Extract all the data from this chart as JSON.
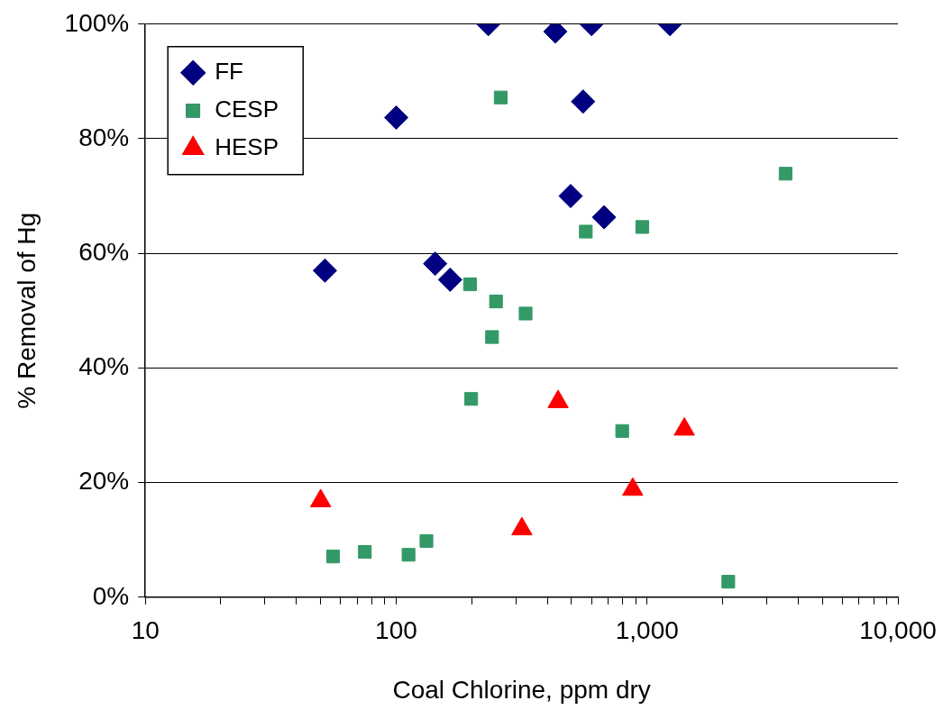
{
  "chart_data": {
    "type": "scatter",
    "xlabel": "Coal Chlorine, ppm dry",
    "ylabel": "% Removal of Hg",
    "log": "x",
    "grid": "y",
    "legend": "top left",
    "xlim": [
      10,
      10000
    ],
    "xticks": [
      {
        "value": 10,
        "label": "10"
      },
      {
        "value": 20,
        "label": null
      },
      {
        "value": 30,
        "label": null
      },
      {
        "value": 40,
        "label": null
      },
      {
        "value": 50,
        "label": null
      },
      {
        "value": 60,
        "label": null
      },
      {
        "value": 70,
        "label": null
      },
      {
        "value": 80,
        "label": null
      },
      {
        "value": 90,
        "label": null
      },
      {
        "value": 100,
        "label": "100"
      },
      {
        "value": 200,
        "label": null
      },
      {
        "value": 300,
        "label": null
      },
      {
        "value": 400,
        "label": null
      },
      {
        "value": 500,
        "label": null
      },
      {
        "value": 600,
        "label": null
      },
      {
        "value": 700,
        "label": null
      },
      {
        "value": 800,
        "label": null
      },
      {
        "value": 900,
        "label": null
      },
      {
        "value": 1000,
        "label": "1,000"
      },
      {
        "value": 2000,
        "label": null
      },
      {
        "value": 3000,
        "label": null
      },
      {
        "value": 4000,
        "label": null
      },
      {
        "value": 5000,
        "label": null
      },
      {
        "value": 6000,
        "label": null
      },
      {
        "value": 7000,
        "label": null
      },
      {
        "value": 8000,
        "label": null
      },
      {
        "value": 9000,
        "label": null
      },
      {
        "value": 10000,
        "label": "10,000"
      }
    ],
    "ylim": [
      0,
      100
    ],
    "yticks": [
      {
        "value": 0,
        "label": "0%"
      },
      {
        "value": 20,
        "label": "20%"
      },
      {
        "value": 40,
        "label": "40%"
      },
      {
        "value": 60,
        "label": "60%"
      },
      {
        "value": 80,
        "label": "80%"
      },
      {
        "value": 100,
        "label": "100%"
      }
    ],
    "series": [
      {
        "name": "FF",
        "color": "#000080",
        "marker": "diamond",
        "x": [
          52,
          100,
          143,
          164,
          233,
          431,
          601,
          556,
          496,
          674,
          1234
        ],
        "values": [
          57,
          83.7,
          58.2,
          55.4,
          100,
          98.7,
          100,
          86.5,
          70,
          66.3,
          100
        ]
      },
      {
        "name": "CESP",
        "color": "#339966",
        "marker": "square",
        "x": [
          56,
          75,
          112,
          132,
          197,
          199,
          241,
          250,
          261,
          328,
          570,
          796,
          957,
          2108,
          3567
        ],
        "values": [
          7.1,
          7.9,
          7.4,
          9.8,
          54.6,
          34.6,
          45.4,
          51.6,
          87.2,
          49.5,
          63.8,
          29,
          64.6,
          2.7,
          73.9
        ]
      },
      {
        "name": "HESP",
        "color": "#ff0000",
        "marker": "triangle",
        "x": [
          50,
          317,
          442,
          877,
          1408
        ],
        "values": [
          16.8,
          11.9,
          34.1,
          18.8,
          29.3
        ]
      }
    ]
  }
}
